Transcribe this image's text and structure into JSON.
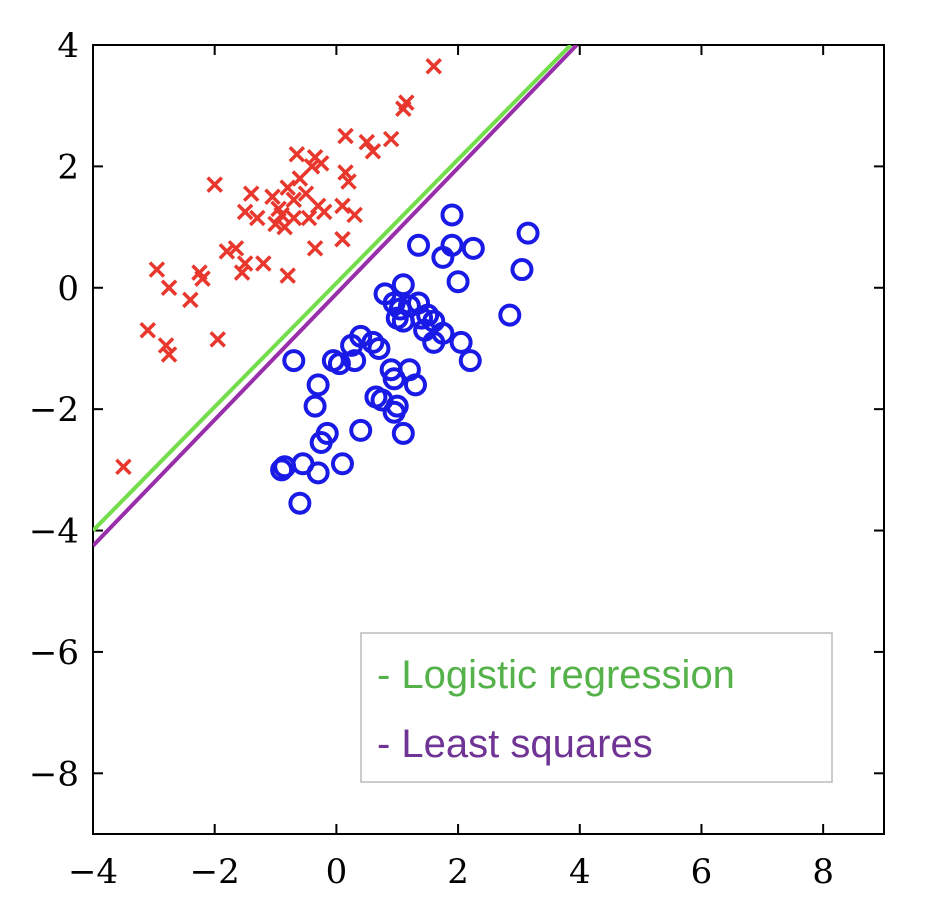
{
  "chart_data": {
    "type": "scatter",
    "title": "",
    "xlabel": "",
    "ylabel": "",
    "xlim": [
      -4,
      9
    ],
    "ylim": [
      -9,
      4
    ],
    "xticks": [
      -4,
      -2,
      0,
      2,
      4,
      6,
      8
    ],
    "yticks": [
      4,
      2,
      0,
      -2,
      -4,
      -6,
      -8
    ],
    "xtick_labels": [
      "−4",
      "−2",
      "0",
      "2",
      "4",
      "6",
      "8"
    ],
    "ytick_labels": [
      "4",
      "2",
      "0",
      "−2",
      "−4",
      "−6",
      "−8"
    ],
    "grid": false,
    "legend_position": "bottom-right",
    "series": [
      {
        "marker": "x",
        "color": "#e8372c",
        "points": [
          [
            -3.5,
            -2.95
          ],
          [
            -3.1,
            -0.7
          ],
          [
            -2.95,
            0.3
          ],
          [
            -2.75,
            0.0
          ],
          [
            -2.8,
            -0.95
          ],
          [
            -2.75,
            -1.1
          ],
          [
            -2.4,
            -0.2
          ],
          [
            -2.25,
            0.25
          ],
          [
            -2.2,
            0.15
          ],
          [
            -1.95,
            -0.85
          ],
          [
            -2.0,
            1.7
          ],
          [
            -1.8,
            0.6
          ],
          [
            -1.65,
            0.65
          ],
          [
            -1.55,
            0.25
          ],
          [
            -1.5,
            0.4
          ],
          [
            -1.5,
            1.25
          ],
          [
            -1.4,
            1.55
          ],
          [
            -1.3,
            1.15
          ],
          [
            -1.2,
            0.4
          ],
          [
            -1.05,
            1.5
          ],
          [
            -1.0,
            1.05
          ],
          [
            -0.95,
            1.3
          ],
          [
            -0.9,
            1.2
          ],
          [
            -0.85,
            1.0
          ],
          [
            -0.8,
            0.2
          ],
          [
            -0.8,
            1.65
          ],
          [
            -0.7,
            1.45
          ],
          [
            -0.7,
            1.15
          ],
          [
            -0.65,
            2.2
          ],
          [
            -0.6,
            1.8
          ],
          [
            -0.5,
            1.55
          ],
          [
            -0.45,
            1.15
          ],
          [
            -0.4,
            2.0
          ],
          [
            -0.35,
            2.15
          ],
          [
            -0.35,
            0.65
          ],
          [
            -0.3,
            1.35
          ],
          [
            -0.25,
            2.05
          ],
          [
            -0.2,
            1.25
          ],
          [
            0.1,
            0.8
          ],
          [
            0.1,
            1.35
          ],
          [
            0.15,
            1.9
          ],
          [
            0.15,
            2.5
          ],
          [
            0.2,
            1.75
          ],
          [
            0.3,
            1.2
          ],
          [
            0.5,
            2.4
          ],
          [
            0.6,
            2.25
          ],
          [
            0.9,
            2.45
          ],
          [
            1.1,
            2.95
          ],
          [
            1.15,
            3.05
          ],
          [
            1.6,
            3.65
          ]
        ]
      },
      {
        "marker": "o",
        "color": "#1a1ae6",
        "points": [
          [
            -0.9,
            -3.0
          ],
          [
            -0.85,
            -2.95
          ],
          [
            -0.6,
            -3.55
          ],
          [
            -0.55,
            -2.9
          ],
          [
            -0.35,
            -1.95
          ],
          [
            -0.7,
            -1.2
          ],
          [
            -0.3,
            -1.6
          ],
          [
            -0.3,
            -3.05
          ],
          [
            -0.25,
            -2.55
          ],
          [
            -0.15,
            -2.4
          ],
          [
            -0.05,
            -1.2
          ],
          [
            0.05,
            -1.25
          ],
          [
            0.1,
            -2.9
          ],
          [
            0.25,
            -0.95
          ],
          [
            0.3,
            -1.2
          ],
          [
            0.4,
            -0.8
          ],
          [
            0.4,
            -2.35
          ],
          [
            0.6,
            -0.9
          ],
          [
            0.7,
            -1.0
          ],
          [
            0.65,
            -1.8
          ],
          [
            0.75,
            -1.85
          ],
          [
            0.8,
            -0.1
          ],
          [
            0.9,
            -1.35
          ],
          [
            0.95,
            -0.25
          ],
          [
            0.95,
            -1.5
          ],
          [
            0.95,
            -2.05
          ],
          [
            1.0,
            -0.5
          ],
          [
            1.0,
            -1.95
          ],
          [
            1.05,
            -0.35
          ],
          [
            1.1,
            0.05
          ],
          [
            1.1,
            -0.55
          ],
          [
            1.1,
            -2.4
          ],
          [
            1.2,
            -0.3
          ],
          [
            1.2,
            -1.35
          ],
          [
            1.3,
            -1.6
          ],
          [
            1.35,
            -0.25
          ],
          [
            1.35,
            0.7
          ],
          [
            1.4,
            -0.5
          ],
          [
            1.45,
            -0.7
          ],
          [
            1.5,
            -0.45
          ],
          [
            1.6,
            -0.55
          ],
          [
            1.6,
            -0.9
          ],
          [
            1.75,
            -0.75
          ],
          [
            1.75,
            0.5
          ],
          [
            1.9,
            1.2
          ],
          [
            1.9,
            0.7
          ],
          [
            2.0,
            0.1
          ],
          [
            2.05,
            -0.9
          ],
          [
            2.2,
            -1.2
          ],
          [
            2.25,
            0.65
          ],
          [
            2.85,
            -0.45
          ],
          [
            3.05,
            0.3
          ],
          [
            3.15,
            0.9
          ]
        ]
      },
      {
        "marker": "line",
        "color": "#74dd4c",
        "line_x": [
          -4,
          3.85
        ],
        "line_y": [
          -4.0,
          4.0
        ]
      },
      {
        "marker": "line",
        "color": "#992eab",
        "line_x": [
          -4,
          3.95
        ],
        "line_y": [
          -4.25,
          4.0
        ]
      }
    ],
    "legend": [
      {
        "label": "- Logistic regression",
        "color": "#55b24a"
      },
      {
        "label": "- Least squares",
        "color": "#6f3494"
      }
    ]
  }
}
